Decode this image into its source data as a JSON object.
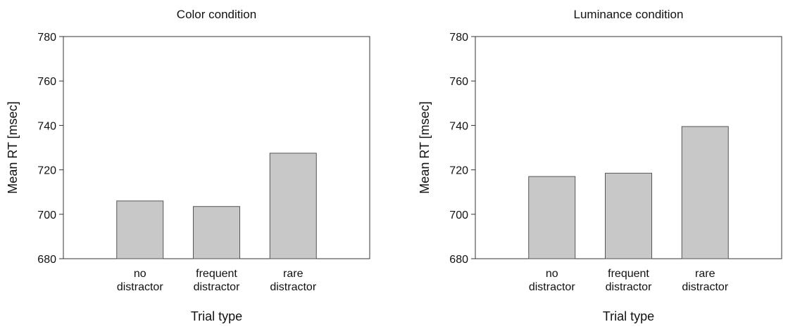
{
  "chart_data": [
    {
      "type": "bar",
      "title": "Color condition",
      "xlabel": "Trial type",
      "ylabel": "Mean RT [msec]",
      "categories": [
        [
          "no",
          "distractor"
        ],
        [
          "frequent",
          "distractor"
        ],
        [
          "rare",
          "distractor"
        ]
      ],
      "values": [
        706,
        703.5,
        727.5
      ],
      "ylim": [
        680,
        780
      ],
      "yticks": [
        680,
        700,
        720,
        740,
        760,
        780
      ],
      "grid": false,
      "bar_color": "#c8c8c8"
    },
    {
      "type": "bar",
      "title": "Luminance condition",
      "xlabel": "Trial type",
      "ylabel": "Mean RT [msec]",
      "categories": [
        [
          "no",
          "distractor"
        ],
        [
          "frequent",
          "distractor"
        ],
        [
          "rare",
          "distractor"
        ]
      ],
      "values": [
        717,
        718.5,
        739.5
      ],
      "ylim": [
        680,
        780
      ],
      "yticks": [
        680,
        700,
        720,
        740,
        760,
        780
      ],
      "grid": false,
      "bar_color": "#c8c8c8"
    }
  ]
}
